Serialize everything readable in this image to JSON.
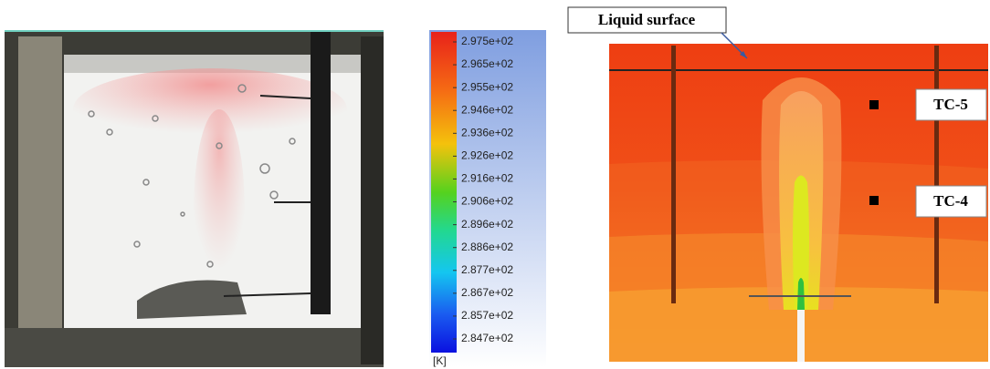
{
  "colorbar": {
    "ticks": [
      "2.975e+02",
      "2.965e+02",
      "2.955e+02",
      "2.946e+02",
      "2.936e+02",
      "2.926e+02",
      "2.916e+02",
      "2.906e+02",
      "2.896e+02",
      "2.886e+02",
      "2.877e+02",
      "2.867e+02",
      "2.857e+02",
      "2.847e+02"
    ],
    "unit": "[K]"
  },
  "contour": {
    "surface_label": "Liquid surface",
    "sensors": [
      "TC-5",
      "TC-4"
    ]
  }
}
